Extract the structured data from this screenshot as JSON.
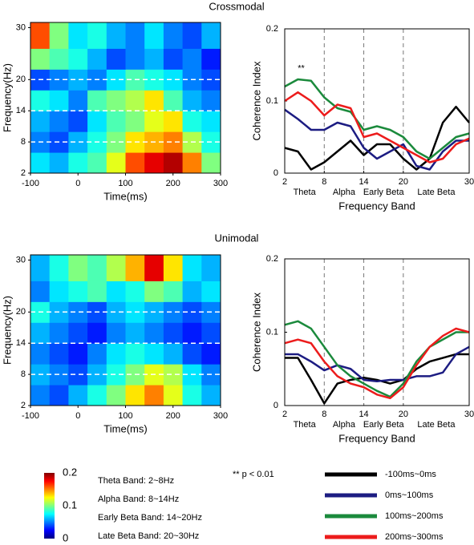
{
  "chart_data": [
    {
      "type": "heatmap",
      "title": "Crossmodal",
      "x_label": "Time(ms)",
      "y_label": "Frequency(Hz)",
      "xlim": [
        -100,
        300
      ],
      "xticks": [
        -100,
        0,
        100,
        200,
        300
      ],
      "ylim": [
        2,
        31
      ],
      "yticks": [
        2,
        8,
        14,
        20,
        30
      ],
      "ygrid": true,
      "xbins": [
        -100,
        -60,
        -20,
        20,
        60,
        100,
        140,
        180,
        220,
        260,
        300
      ],
      "ybins": [
        2,
        6,
        10,
        14,
        18,
        22,
        26,
        30
      ],
      "clim": [
        0,
        0.2
      ],
      "cticks": [
        0,
        0.1,
        0.2
      ],
      "values": [
        [
          0.07,
          0.06,
          0.08,
          0.09,
          0.12,
          0.16,
          0.18,
          0.19,
          0.15,
          0.1
        ],
        [
          0.05,
          0.04,
          0.06,
          0.08,
          0.1,
          0.13,
          0.14,
          0.15,
          0.11,
          0.08
        ],
        [
          0.06,
          0.05,
          0.04,
          0.07,
          0.09,
          0.1,
          0.12,
          0.13,
          0.08,
          0.07
        ],
        [
          0.08,
          0.07,
          0.05,
          0.09,
          0.1,
          0.11,
          0.13,
          0.09,
          0.06,
          0.05
        ],
        [
          0.04,
          0.05,
          0.06,
          0.05,
          0.07,
          0.09,
          0.08,
          0.07,
          0.05,
          0.04
        ],
        [
          0.1,
          0.09,
          0.08,
          0.06,
          0.04,
          0.05,
          0.06,
          0.04,
          0.05,
          0.03
        ],
        [
          0.16,
          0.1,
          0.07,
          0.08,
          0.06,
          0.05,
          0.07,
          0.05,
          0.04,
          0.06
        ]
      ]
    },
    {
      "type": "line",
      "x_label": "Frequency Band",
      "y_label": "Coherence Index",
      "x": [
        2,
        4,
        6,
        8,
        10,
        12,
        14,
        16,
        18,
        20,
        22,
        24,
        26,
        28,
        30
      ],
      "xlim": [
        2,
        30
      ],
      "xticks": [
        2,
        8,
        14,
        20,
        30
      ],
      "xgrid": true,
      "ylim": [
        0,
        0.2
      ],
      "yticks": [
        0,
        0.1,
        0.2
      ],
      "bands": [
        "Theta",
        "Alpha",
        "Early Beta",
        "Late Beta"
      ],
      "annotations": [
        {
          "text": "**",
          "x": 4.5,
          "y": 0.145
        }
      ],
      "series": [
        {
          "name": "-100ms~0ms",
          "color": "#000000",
          "values": [
            0.035,
            0.03,
            0.005,
            0.015,
            0.03,
            0.045,
            0.025,
            0.04,
            0.04,
            0.02,
            0.005,
            0.02,
            0.07,
            0.092,
            0.07
          ]
        },
        {
          "name": "0ms~100ms",
          "color": "#1c1c82",
          "values": [
            0.088,
            0.075,
            0.06,
            0.06,
            0.07,
            0.065,
            0.035,
            0.02,
            0.03,
            0.04,
            0.01,
            0.005,
            0.03,
            0.045,
            0.045
          ]
        },
        {
          "name": "100ms~200ms",
          "color": "#1b8a3c",
          "values": [
            0.12,
            0.13,
            0.128,
            0.105,
            0.09,
            0.085,
            0.06,
            0.065,
            0.06,
            0.05,
            0.03,
            0.02,
            0.035,
            0.05,
            0.055
          ]
        },
        {
          "name": "200ms~300ms",
          "color": "#ec1c1c",
          "values": [
            0.1,
            0.112,
            0.1,
            0.08,
            0.095,
            0.09,
            0.05,
            0.055,
            0.045,
            0.035,
            0.025,
            0.015,
            0.02,
            0.04,
            0.048
          ]
        }
      ]
    },
    {
      "type": "heatmap",
      "title": "Unimodal",
      "x_label": "Time(ms)",
      "y_label": "Frequency(Hz)",
      "xlim": [
        -100,
        300
      ],
      "xticks": [
        -100,
        0,
        100,
        200,
        300
      ],
      "ylim": [
        2,
        31
      ],
      "yticks": [
        2,
        8,
        14,
        20,
        30
      ],
      "ygrid": true,
      "xbins": [
        -100,
        -60,
        -20,
        20,
        60,
        100,
        140,
        180,
        220,
        260,
        300
      ],
      "ybins": [
        2,
        6,
        10,
        14,
        18,
        22,
        26,
        30
      ],
      "clim": [
        0,
        0.2
      ],
      "values": [
        [
          0.05,
          0.04,
          0.06,
          0.08,
          0.1,
          0.13,
          0.15,
          0.12,
          0.08,
          0.06
        ],
        [
          0.06,
          0.05,
          0.04,
          0.06,
          0.08,
          0.1,
          0.12,
          0.11,
          0.07,
          0.05
        ],
        [
          0.05,
          0.04,
          0.03,
          0.05,
          0.07,
          0.08,
          0.07,
          0.06,
          0.04,
          0.03
        ],
        [
          0.06,
          0.05,
          0.04,
          0.03,
          0.05,
          0.06,
          0.05,
          0.04,
          0.03,
          0.04
        ],
        [
          0.08,
          0.06,
          0.05,
          0.04,
          0.06,
          0.07,
          0.06,
          0.05,
          0.04,
          0.05
        ],
        [
          0.05,
          0.07,
          0.08,
          0.09,
          0.07,
          0.08,
          0.1,
          0.09,
          0.06,
          0.07
        ],
        [
          0.06,
          0.08,
          0.1,
          0.09,
          0.11,
          0.14,
          0.18,
          0.13,
          0.07,
          0.06
        ]
      ]
    },
    {
      "type": "line",
      "x_label": "Frequency Band",
      "y_label": "Coherence Index",
      "x": [
        2,
        4,
        6,
        8,
        10,
        12,
        14,
        16,
        18,
        20,
        22,
        24,
        26,
        28,
        30
      ],
      "xlim": [
        2,
        30
      ],
      "xticks": [
        2,
        8,
        14,
        20,
        30
      ],
      "xgrid": true,
      "ylim": [
        0,
        0.2
      ],
      "yticks": [
        0,
        0.1,
        0.2
      ],
      "bands": [
        "Theta",
        "Alpha",
        "Early Beta",
        "Late Beta"
      ],
      "series": [
        {
          "name": "-100ms~0ms",
          "color": "#000000",
          "values": [
            0.065,
            0.065,
            0.035,
            0.003,
            0.03,
            0.035,
            0.038,
            0.035,
            0.03,
            0.035,
            0.05,
            0.06,
            0.065,
            0.07,
            0.07
          ]
        },
        {
          "name": "0ms~100ms",
          "color": "#1c1c82",
          "values": [
            0.07,
            0.07,
            0.06,
            0.048,
            0.055,
            0.05,
            0.035,
            0.033,
            0.035,
            0.035,
            0.04,
            0.04,
            0.045,
            0.07,
            0.08
          ]
        },
        {
          "name": "100ms~200ms",
          "color": "#1b8a3c",
          "values": [
            0.11,
            0.115,
            0.105,
            0.08,
            0.055,
            0.04,
            0.03,
            0.02,
            0.012,
            0.03,
            0.06,
            0.08,
            0.09,
            0.1,
            0.1
          ]
        },
        {
          "name": "200ms~300ms",
          "color": "#ec1c1c",
          "values": [
            0.085,
            0.09,
            0.085,
            0.06,
            0.04,
            0.03,
            0.025,
            0.015,
            0.01,
            0.025,
            0.055,
            0.08,
            0.095,
            0.105,
            0.1
          ]
        }
      ]
    }
  ],
  "band_notes": [
    "Theta Band: 2~8Hz",
    "Alpha Band: 8~14Hz",
    "Early Beta Band: 14~20Hz",
    "Late Beta Band: 20~30Hz"
  ],
  "significance_note": "** p < 0.01"
}
